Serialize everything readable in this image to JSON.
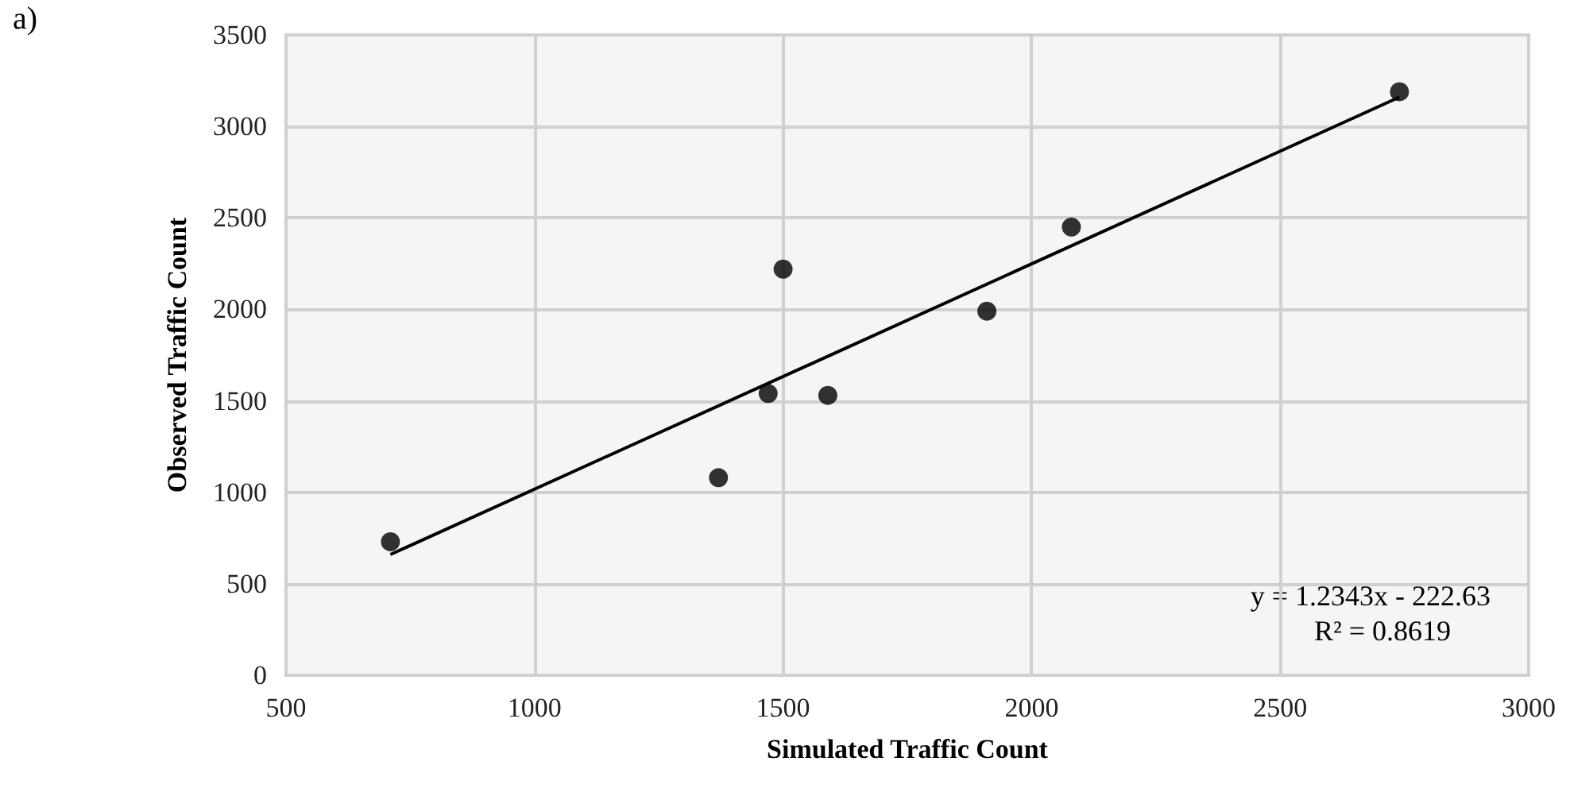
{
  "chart_data": {
    "type": "scatter",
    "title": "a)",
    "xlabel": "Simulated Traffic Count",
    "ylabel": "Observed Traffic Count",
    "x": [
      710,
      1370,
      1470,
      1590,
      1500,
      1910,
      2080,
      2740
    ],
    "series": [
      {
        "color": "#000000",
        "values": [
          730,
          1080,
          1540,
          1530,
          2220,
          1990,
          2450,
          3190
        ]
      },
      {
        "type": "line",
        "color": "#000000",
        "marker": "none",
        "x": [
          710,
          2740
        ],
        "values": [
          660,
          3160
        ]
      }
    ],
    "xlim": [
      500,
      3000
    ],
    "xticks": [
      500,
      1000,
      1500,
      2000,
      2500,
      3000
    ],
    "ylim": [
      0,
      3500
    ],
    "yticks": [
      0,
      500,
      1000,
      1500,
      2000,
      2500,
      3000,
      3500
    ],
    "grid": true,
    "marker": "circle",
    "annotations": [
      "y = 1.2343x - 222.63",
      "R² = 0.8619"
    ]
  }
}
